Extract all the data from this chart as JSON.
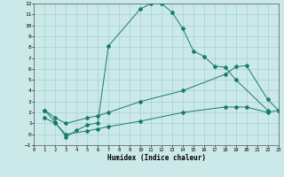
{
  "xlabel": "Humidex (Indice chaleur)",
  "xlim": [
    0,
    23
  ],
  "ylim": [
    -1,
    12
  ],
  "xticks": [
    0,
    1,
    2,
    3,
    4,
    5,
    6,
    7,
    8,
    9,
    10,
    11,
    12,
    13,
    14,
    15,
    16,
    17,
    18,
    19,
    20,
    21,
    22,
    23
  ],
  "yticks": [
    -1,
    0,
    1,
    2,
    3,
    4,
    5,
    6,
    7,
    8,
    9,
    10,
    11,
    12
  ],
  "color": "#1a7a6e",
  "bg_color": "#cce9e9",
  "grid_color": "#99cccc",
  "line1_x": [
    1,
    2,
    3,
    4,
    5,
    6,
    7,
    10,
    11,
    12,
    13,
    14,
    15,
    16,
    17,
    18,
    19,
    22
  ],
  "line1_y": [
    2.2,
    1.1,
    -0.25,
    0.35,
    0.85,
    1.05,
    8.1,
    11.5,
    12.0,
    12.0,
    11.2,
    9.7,
    7.65,
    7.15,
    6.25,
    6.15,
    5.0,
    2.2
  ],
  "line2_x": [
    1,
    2,
    3,
    5,
    6,
    7,
    10,
    14,
    18,
    19,
    20,
    22,
    23
  ],
  "line2_y": [
    2.2,
    1.5,
    1.0,
    1.5,
    1.7,
    2.0,
    3.0,
    4.0,
    5.5,
    6.2,
    6.3,
    3.2,
    2.2
  ],
  "line3_x": [
    1,
    2,
    3,
    5,
    6,
    7,
    10,
    14,
    18,
    19,
    20,
    22,
    23
  ],
  "line3_y": [
    1.5,
    1.0,
    0.0,
    0.3,
    0.5,
    0.7,
    1.2,
    2.0,
    2.5,
    2.5,
    2.5,
    2.0,
    2.2
  ]
}
